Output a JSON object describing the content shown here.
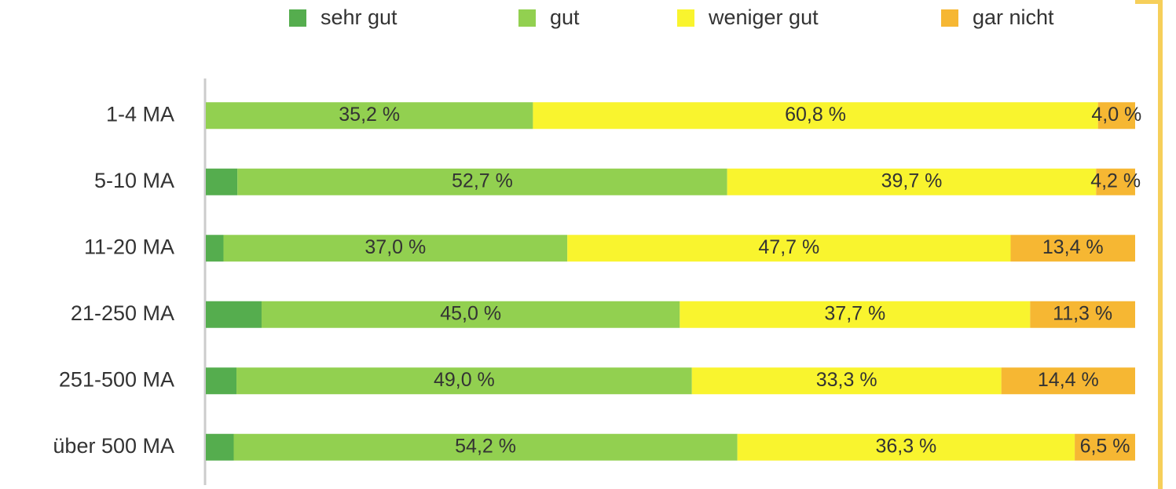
{
  "chart_data": {
    "type": "stacked-bar-horizontal",
    "categories": [
      "1-4 MA",
      "5-10 MA",
      "11-20 MA",
      "21-250 MA",
      "251-500 MA",
      "über 500 MA"
    ],
    "xlim": [
      0,
      100
    ],
    "series": [
      {
        "name": "sehr gut",
        "color": "#55ad4e",
        "values": [
          0,
          3.4,
          1.9,
          6.0,
          3.3,
          3.0
        ]
      },
      {
        "name": "gut",
        "color": "#92d050",
        "values": [
          35.2,
          52.7,
          37.0,
          45.0,
          49.0,
          54.2
        ],
        "value_labels": [
          "35,2 %",
          "52,7 %",
          "37,0 %",
          "45,0 %",
          "49,0 %",
          "54,2 %"
        ]
      },
      {
        "name": "weniger gut",
        "color": "#f9f42e",
        "values": [
          60.8,
          39.7,
          47.7,
          37.7,
          33.3,
          36.3
        ],
        "value_labels": [
          "60,8 %",
          "39,7 %",
          "47,7 %",
          "37,7 %",
          "33,3 %",
          "36,3 %"
        ]
      },
      {
        "name": "gar nicht",
        "color": "#f6b733",
        "values": [
          4.0,
          4.2,
          13.4,
          11.3,
          14.4,
          6.5
        ],
        "value_labels": [
          "4,0 %",
          "4,2 %",
          "13,4 %",
          "11,3 %",
          "14,4 %",
          "6,5 %"
        ]
      }
    ]
  }
}
